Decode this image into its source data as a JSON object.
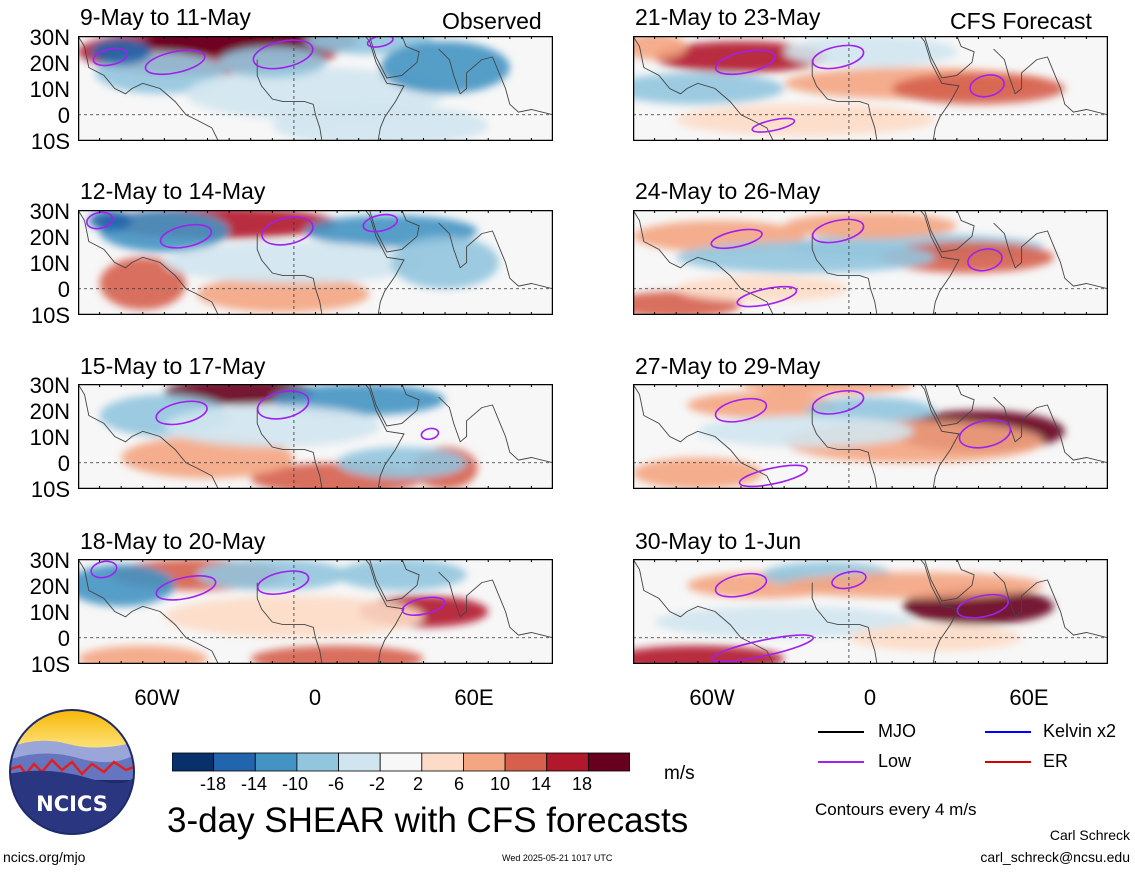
{
  "header": {
    "observed_label": "Observed",
    "forecast_label": "CFS Forecast"
  },
  "panels": {
    "left": [
      "9-May to 11-May",
      "12-May to 14-May",
      "15-May to 17-May",
      "18-May to 20-May"
    ],
    "right": [
      "21-May to 23-May",
      "24-May to 26-May",
      "27-May to 29-May",
      "30-May to 1-Jun"
    ]
  },
  "axes": {
    "lat_labels": [
      "30N",
      "20N",
      "10N",
      "0",
      "10S"
    ],
    "lon_labels": [
      "60W",
      "0",
      "60E"
    ]
  },
  "colorbar": {
    "labels": [
      "-18",
      "-14",
      "-10",
      "-6",
      "-2",
      "2",
      "6",
      "10",
      "14",
      "18"
    ],
    "units": "m/s",
    "colors": [
      "#08306b",
      "#2166ac",
      "#4393c3",
      "#92c5de",
      "#d1e5f0",
      "#f7f7f7",
      "#fddbc7",
      "#f4a582",
      "#d6604d",
      "#b2182b",
      "#67001f"
    ]
  },
  "legend": {
    "mjo": "MJO",
    "kelvin": "Kelvin x2",
    "low": "Low",
    "er": "ER",
    "colors": {
      "mjo": "#000000",
      "kelvin": "#0000ff",
      "low": "#a020f0",
      "er": "#d00000"
    }
  },
  "footer": {
    "main_title": "3-day SHEAR with CFS forecasts",
    "contours_note": "Contours every 4 m/s",
    "author": "Carl Schreck",
    "email": "carl_schreck@ncsu.edu",
    "url": "ncics.org/mjo",
    "timestamp": "Wed 2025-05-21 1017 UTC",
    "logo_text": "NCICS"
  }
}
